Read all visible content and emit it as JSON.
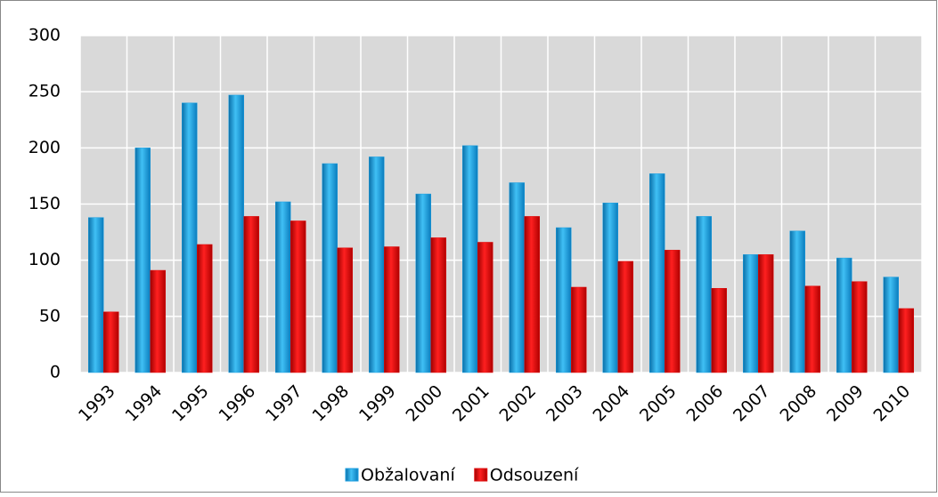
{
  "chart_data": {
    "type": "bar",
    "categories": [
      "1993",
      "1994",
      "1995",
      "1996",
      "1997",
      "1998",
      "1999",
      "2000",
      "2001",
      "2002",
      "2003",
      "2004",
      "2005",
      "2006",
      "2007",
      "2008",
      "2009",
      "2010"
    ],
    "series": [
      {
        "name": "Obžalovaní",
        "color": "#1e9fe0",
        "values": [
          138,
          200,
          240,
          247,
          152,
          186,
          192,
          159,
          202,
          169,
          129,
          151,
          177,
          139,
          105,
          126,
          102,
          85
        ]
      },
      {
        "name": "Odsouzení",
        "color": "#e01010",
        "values": [
          54,
          91,
          114,
          139,
          135,
          111,
          112,
          120,
          116,
          139,
          76,
          99,
          109,
          75,
          105,
          77,
          81,
          57
        ]
      }
    ],
    "ylim": [
      0,
      300
    ],
    "yticks": [
      0,
      50,
      100,
      150,
      200,
      250,
      300
    ],
    "grid": true,
    "legend": "bottom"
  }
}
